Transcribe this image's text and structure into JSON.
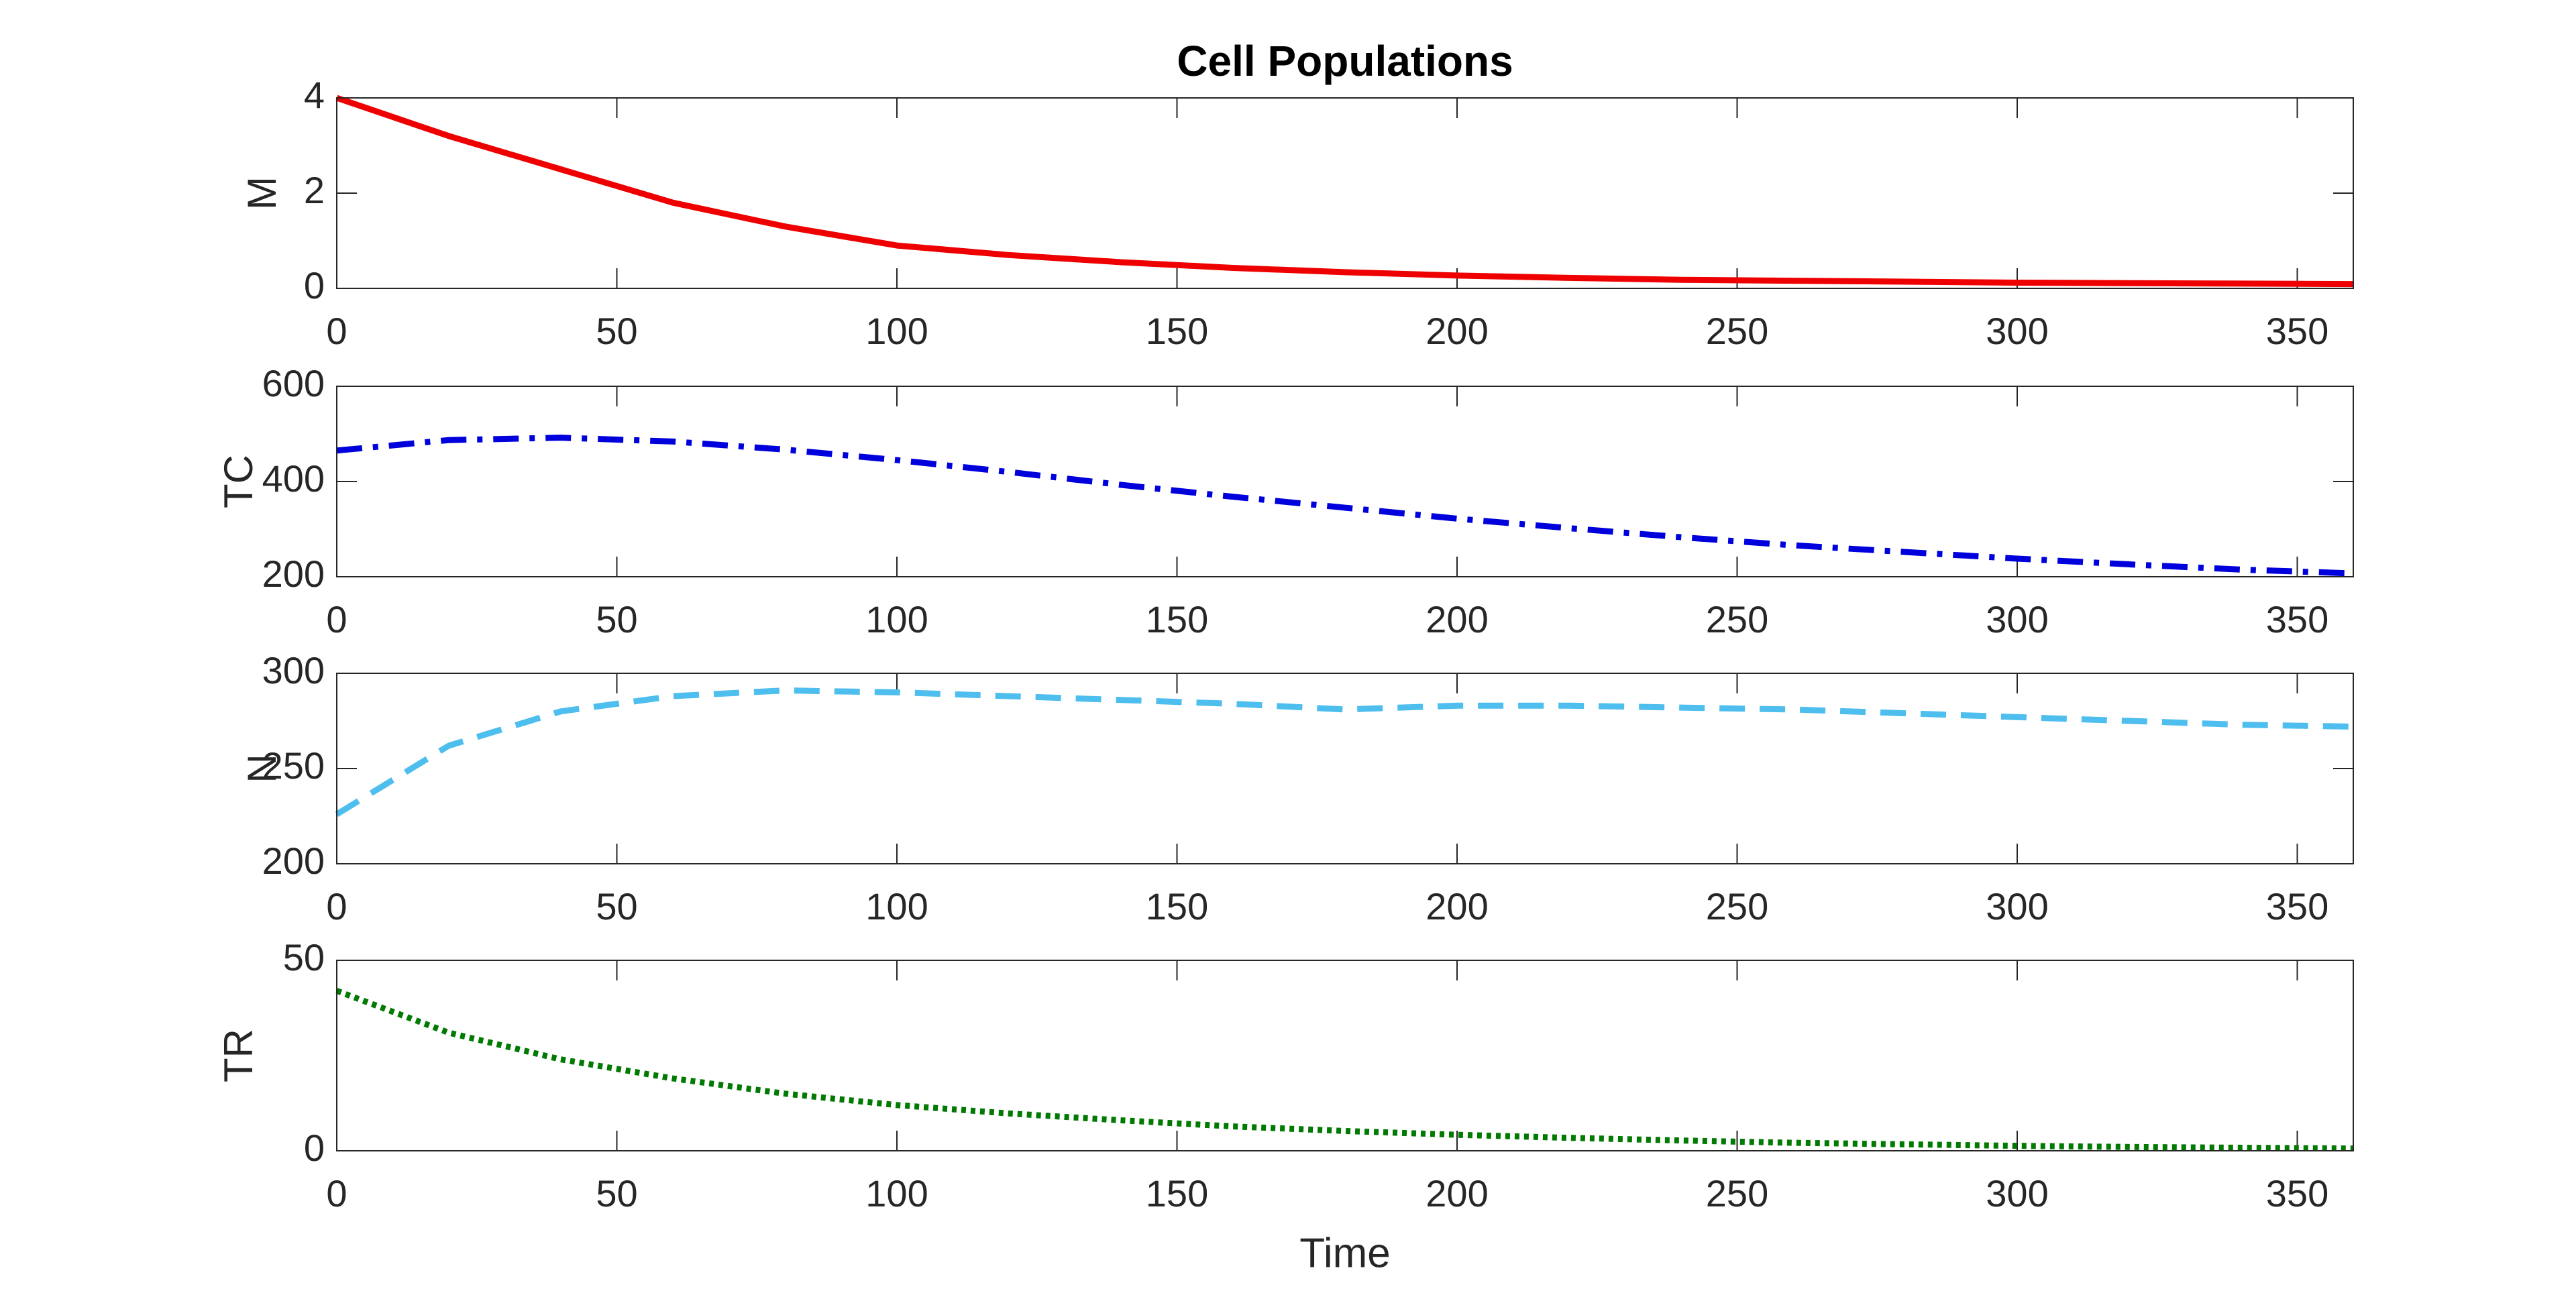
{
  "chart_data": [
    {
      "type": "line",
      "title": "Cell Populations",
      "ylabel": "M",
      "color": "#ee0000",
      "line_style": "solid",
      "x": [
        0,
        20,
        40,
        60,
        80,
        100,
        120,
        140,
        160,
        180,
        200,
        220,
        240,
        260,
        280,
        300,
        320,
        340,
        360
      ],
      "values": [
        4.0,
        3.2,
        2.5,
        1.8,
        1.3,
        0.9,
        0.7,
        0.55,
        0.43,
        0.34,
        0.27,
        0.22,
        0.18,
        0.16,
        0.14,
        0.12,
        0.11,
        0.1,
        0.09
      ],
      "xlim": [
        0,
        360
      ],
      "xticks": [
        0,
        50,
        100,
        150,
        200,
        250,
        300,
        350
      ],
      "ylim": [
        0,
        4
      ],
      "yticks": [
        0,
        2,
        4
      ]
    },
    {
      "type": "line",
      "ylabel": "TC",
      "color": "#0000dd",
      "line_style": "dashdot",
      "x": [
        0,
        20,
        40,
        60,
        80,
        100,
        120,
        140,
        160,
        180,
        200,
        220,
        240,
        260,
        280,
        300,
        320,
        340,
        360
      ],
      "values": [
        465,
        487,
        492,
        484,
        467,
        445,
        420,
        393,
        368,
        345,
        322,
        302,
        283,
        266,
        252,
        238,
        226,
        215,
        207
      ],
      "xlim": [
        0,
        360
      ],
      "xticks": [
        0,
        50,
        100,
        150,
        200,
        250,
        300,
        350
      ],
      "ylim": [
        200,
        600
      ],
      "yticks": [
        200,
        400,
        600
      ]
    },
    {
      "type": "line",
      "ylabel": "N",
      "color": "#4dbeee",
      "line_style": "dashed",
      "x": [
        0,
        20,
        40,
        60,
        80,
        100,
        120,
        140,
        160,
        180,
        200,
        220,
        240,
        260,
        280,
        300,
        320,
        340,
        360
      ],
      "values": [
        226,
        262,
        280,
        288,
        291,
        290,
        288,
        286,
        284,
        281,
        283,
        283,
        282,
        281,
        279,
        277,
        275,
        273,
        272
      ],
      "xlim": [
        0,
        360
      ],
      "xticks": [
        0,
        50,
        100,
        150,
        200,
        250,
        300,
        350
      ],
      "ylim": [
        200,
        300
      ],
      "yticks": [
        200,
        250,
        300
      ]
    },
    {
      "type": "line",
      "ylabel": "TR",
      "xlabel": "Time",
      "color": "#007a00",
      "line_style": "dotted",
      "x": [
        0,
        20,
        40,
        60,
        80,
        100,
        120,
        140,
        160,
        180,
        200,
        220,
        240,
        260,
        280,
        300,
        320,
        340,
        360
      ],
      "values": [
        42,
        31,
        24,
        19,
        15,
        12,
        9.8,
        8,
        6.4,
        5.2,
        4.2,
        3.4,
        2.7,
        2.1,
        1.7,
        1.3,
        1.0,
        0.8,
        0.6
      ],
      "xlim": [
        0,
        360
      ],
      "xticks": [
        0,
        50,
        100,
        150,
        200,
        250,
        300,
        350
      ],
      "ylim": [
        0,
        50
      ],
      "yticks": [
        0,
        50
      ]
    }
  ]
}
